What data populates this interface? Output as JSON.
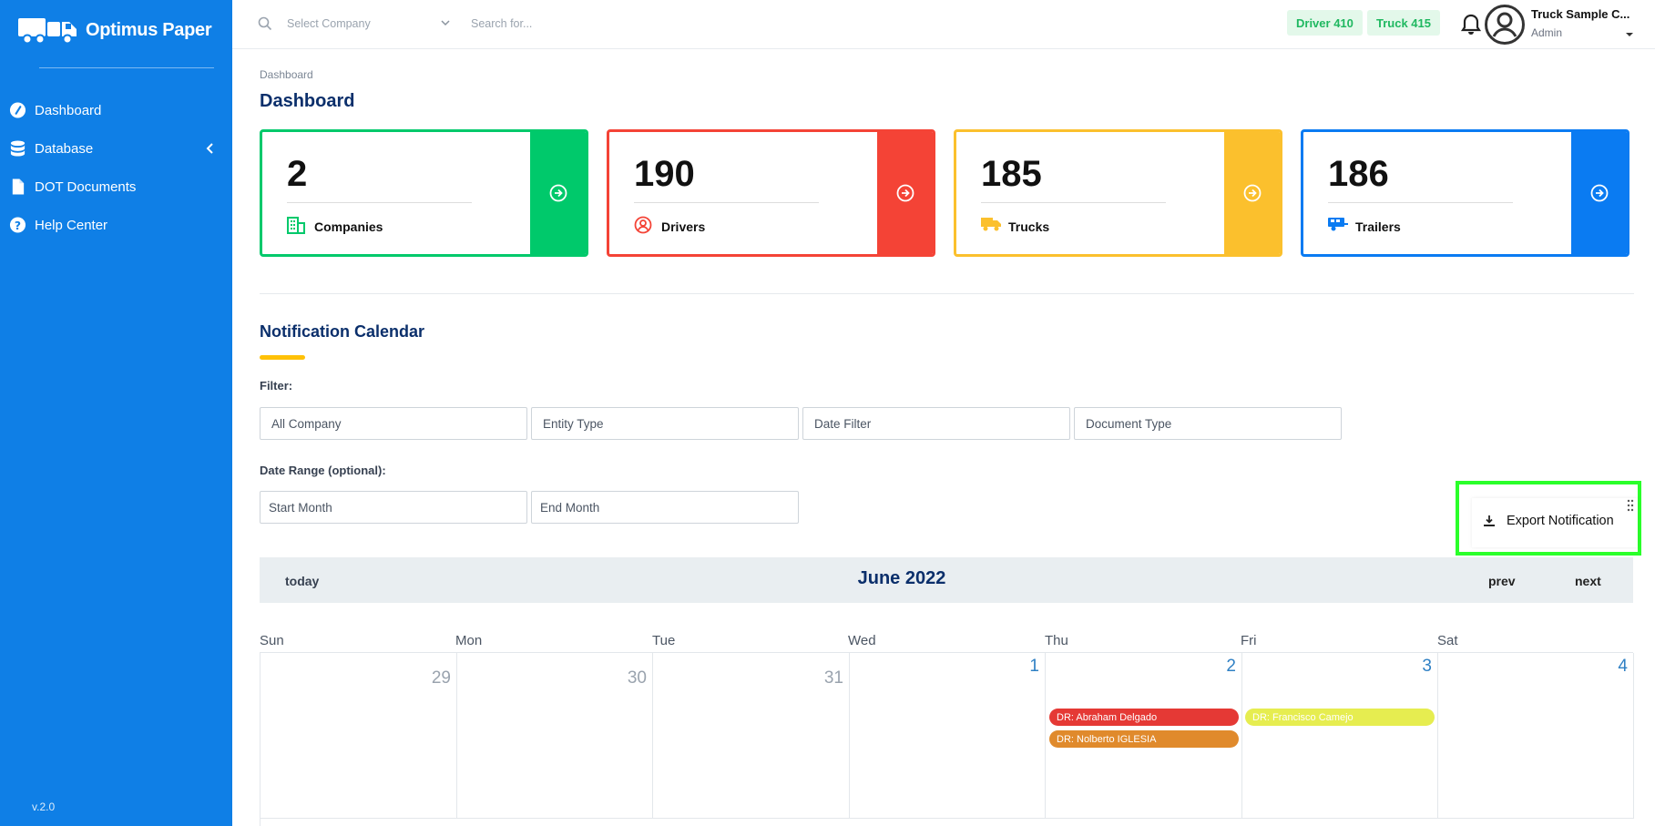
{
  "sidebar": {
    "brand": "Optimus Paper",
    "version": "v.2.0",
    "items": [
      {
        "label": "Dashboard"
      },
      {
        "label": "Database"
      },
      {
        "label": "DOT Documents"
      },
      {
        "label": "Help Center"
      }
    ]
  },
  "topbar": {
    "company_placeholder": "Select Company",
    "search_placeholder": "Search for...",
    "badge_driver": "Driver 410",
    "badge_truck": "Truck 415",
    "user_name": "Truck Sample C...",
    "user_role": "Admin"
  },
  "breadcrumb": "Dashboard",
  "page_title": "Dashboard",
  "cards": [
    {
      "value": "2",
      "label": "Companies",
      "color": "#00c96b"
    },
    {
      "value": "190",
      "label": "Drivers",
      "color": "#f44336"
    },
    {
      "value": "185",
      "label": "Trucks",
      "color": "#fbc02d"
    },
    {
      "value": "186",
      "label": "Trailers",
      "color": "#0a7bf2"
    }
  ],
  "calendar_section": {
    "title": "Notification Calendar",
    "filter_label": "Filter:",
    "filters": [
      "All Company",
      "Entity Type",
      "Date Filter",
      "Document Type"
    ],
    "date_range_label": "Date Range (optional):",
    "start_month": "Start Month",
    "end_month": "End Month",
    "export_label": "Export Notification"
  },
  "calendar": {
    "today_label": "today",
    "title": "June 2022",
    "prev_label": "prev",
    "next_label": "next",
    "days_of_week": [
      "Sun",
      "Mon",
      "Tue",
      "Wed",
      "Thu",
      "Fri",
      "Sat"
    ],
    "dates": [
      "29",
      "30",
      "31",
      "1",
      "2",
      "3",
      "4"
    ],
    "events": [
      {
        "label": "DR: Abraham Delgado",
        "color": "#e53935"
      },
      {
        "label": "DR: Nolberto IGLESIA",
        "color": "#e08a2c"
      },
      {
        "label": "DR: Francisco Camejo",
        "color": "#e6ed50"
      }
    ]
  }
}
